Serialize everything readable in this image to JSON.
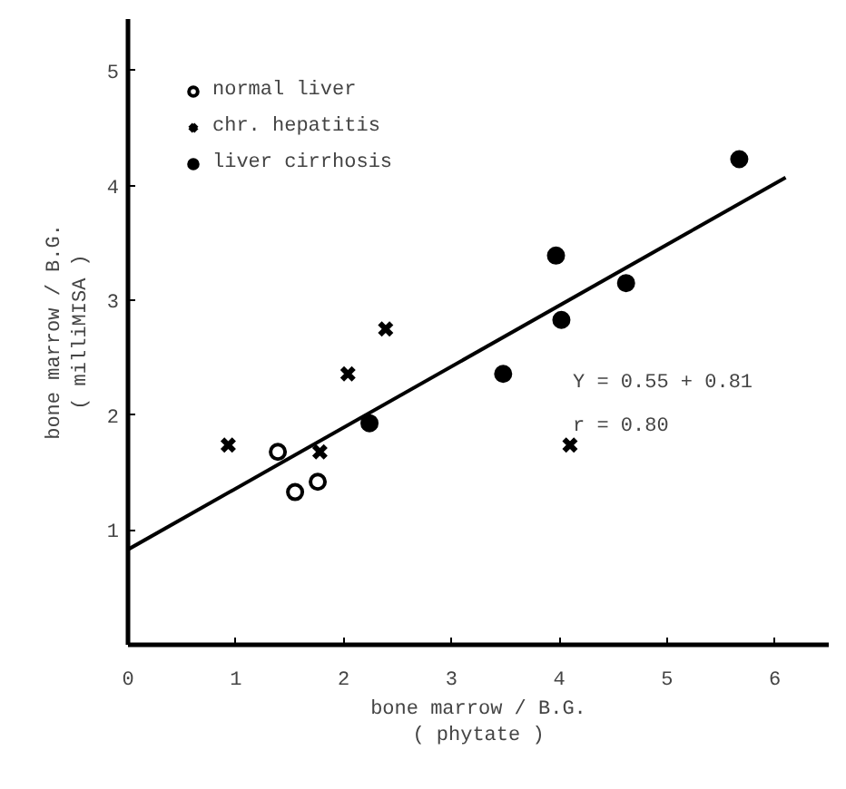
{
  "chart_data": {
    "type": "scatter",
    "xlabel": "bone marrow / B.G.\n( phytate )",
    "ylabel": "bone marrow / B.G.\n( milliMISA )",
    "xlim": [
      0,
      6.5
    ],
    "ylim": [
      0,
      5.45
    ],
    "xticks": [
      0,
      1,
      2,
      3,
      4,
      5,
      6
    ],
    "yticks": [
      1,
      2,
      3,
      4,
      5
    ],
    "grid": false,
    "legend": "top left",
    "series": [
      {
        "name": "normal liver",
        "color": "#ffffff",
        "marker": "circle",
        "x": [
          1.39,
          1.55,
          1.76
        ],
        "values": [
          1.68,
          1.33,
          1.42
        ]
      },
      {
        "name": "chr. hepatitis",
        "color": "#000000",
        "marker": "cross",
        "x": [
          0.93,
          1.78,
          2.04,
          2.39,
          4.1
        ],
        "values": [
          1.74,
          1.68,
          2.36,
          2.75,
          1.74
        ]
      },
      {
        "name": "liver cirrhosis",
        "color": "#000000",
        "marker": "circle",
        "x": [
          2.24,
          3.48,
          3.97,
          4.02,
          4.62,
          5.67
        ],
        "values": [
          1.93,
          2.36,
          3.39,
          2.83,
          3.15,
          4.23
        ]
      },
      {
        "type": "line",
        "color": "#000000",
        "line_style": "solid",
        "x": [
          0,
          6.1
        ],
        "values": [
          0.83,
          4.07
        ]
      }
    ],
    "annotations": [
      "Y = 0.55 + 0.81",
      "r = 0.80"
    ]
  }
}
